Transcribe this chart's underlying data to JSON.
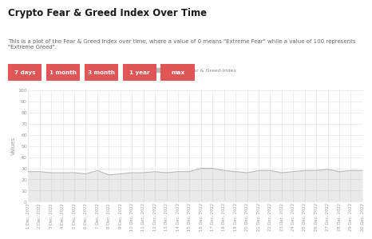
{
  "title": "Crypto Fear & Greed Index Over Time",
  "subtitle": "This is a plot of the Fear & Greed Index over time, where a value of 0 means \"Extreme Fear\" while a value of 100 represents \"Extreme Greed\".",
  "legend_label": "Crypto Fear & Greed Index",
  "ylabel": "Values",
  "ylim": [
    0,
    100
  ],
  "yticks": [
    0,
    10,
    20,
    30,
    40,
    50,
    60,
    70,
    80,
    90,
    100
  ],
  "background_color": "#ffffff",
  "plot_bg_color": "#ffffff",
  "grid_color": "#e0e0e0",
  "line_color": "#b8b8b8",
  "title_fontsize": 8.5,
  "subtitle_fontsize": 5.0,
  "button_labels": [
    "7 days",
    "1 month",
    "3 month",
    "1 year",
    "max"
  ],
  "button_color": "#e05555",
  "button_text_color": "#ffffff",
  "x_labels": [
    "1 Dec, 2022",
    "2 Dec, 2022",
    "3 Dec, 2022",
    "4 Dec, 2022",
    "5 Dec, 2022",
    "6 Dec, 2022",
    "7 Dec, 2022",
    "8 Dec, 2022",
    "9 Dec, 2022",
    "10 Dec, 2022",
    "11 Dec, 2022",
    "12 Dec, 2022",
    "13 Dec, 2022",
    "14 Dec, 2022",
    "15 Dec, 2022",
    "16 Dec, 2022",
    "17 Dec, 2022",
    "18 Dec, 2022",
    "19 Dec, 2022",
    "20 Dec, 2022",
    "21 Dec, 2022",
    "22 Dec, 2022",
    "23 Dec, 2022",
    "24 Dec, 2022",
    "25 Dec, 2022",
    "26 Dec, 2022",
    "27 Dec, 2022",
    "28 Dec, 2022",
    "29 Dec, 2022",
    "30 Dec, 2022"
  ],
  "y_values": [
    27,
    27,
    26,
    26,
    26,
    25,
    28,
    24,
    25,
    26,
    26,
    27,
    26,
    27,
    27,
    30,
    30,
    28,
    27,
    26,
    28,
    28,
    26,
    27,
    28,
    28,
    29,
    27,
    28,
    28
  ]
}
